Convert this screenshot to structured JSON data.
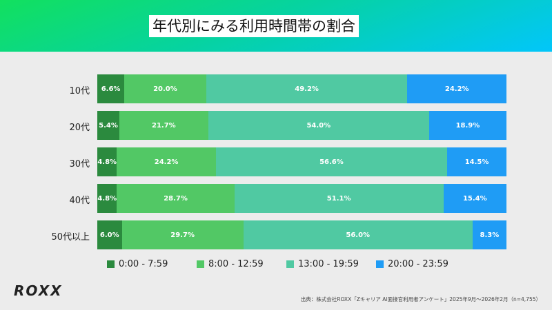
{
  "title": "年代別にみる利用時間帯の割合",
  "chart_data": {
    "type": "bar",
    "stacked": true,
    "orientation": "horizontal",
    "title": "年代別にみる利用時間帯の割合",
    "categories": [
      "10代",
      "20代",
      "30代",
      "40代",
      "50代以上"
    ],
    "series": [
      {
        "name": "0:00 - 7:59",
        "color": "#2b8a3e",
        "values": [
          6.6,
          5.4,
          4.8,
          4.8,
          6.0
        ],
        "labels": [
          "6.6%",
          "5.4%",
          "4.8%",
          "4.8%",
          "6.0%"
        ]
      },
      {
        "name": "8:00 - 12:59",
        "color": "#52c865",
        "values": [
          20.0,
          21.7,
          24.2,
          28.7,
          29.7
        ],
        "labels": [
          "20.0%",
          "21.7%",
          "24.2%",
          "28.7%",
          "29.7%"
        ]
      },
      {
        "name": "13:00 - 19:59",
        "color": "#50c9a2",
        "values": [
          49.2,
          54.0,
          56.6,
          51.1,
          56.0
        ],
        "labels": [
          "49.2%",
          "54.0%",
          "56.6%",
          "51.1%",
          "56.0%"
        ]
      },
      {
        "name": "20:00 - 23:59",
        "color": "#1f9cf5",
        "values": [
          24.2,
          18.9,
          14.5,
          15.4,
          8.3
        ],
        "labels": [
          "24.2%",
          "18.9%",
          "14.5%",
          "15.4%",
          "8.3%"
        ]
      }
    ],
    "legend": "bottom"
  },
  "logo": "ROXX",
  "source": "出典：株式会社ROXX「Zキャリア AI面接官利用者アンケート」2025年9月〜2026年2月（n=4,755）"
}
